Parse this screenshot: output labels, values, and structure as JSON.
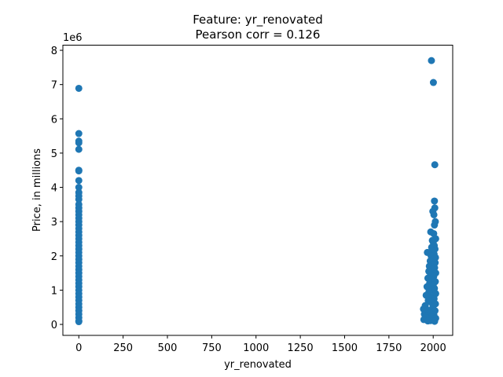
{
  "chart_data": {
    "type": "scatter",
    "title": "Feature: yr_renovated",
    "subtitle": "Pearson corr = 0.126",
    "xlabel": "yr_renovated",
    "ylabel": "Price, in millions",
    "y_offset_label": "1e6",
    "xlim": [
      -90,
      2110
    ],
    "ylim": [
      -320000,
      8150000
    ],
    "x_ticks": [
      0,
      250,
      500,
      750,
      1000,
      1250,
      1500,
      1750,
      2000
    ],
    "x_tick_labels": [
      "0",
      "250",
      "500",
      "750",
      "1000",
      "1250",
      "1500",
      "1750",
      "2000"
    ],
    "y_ticks": [
      0,
      1000000,
      2000000,
      3000000,
      4000000,
      5000000,
      6000000,
      7000000,
      8000000
    ],
    "y_tick_labels": [
      "0",
      "1",
      "2",
      "3",
      "4",
      "5",
      "6",
      "7",
      "8"
    ],
    "grid": false,
    "marker_color": "#1f77b4",
    "points": [
      [
        0,
        6890000
      ],
      [
        0,
        5570000
      ],
      [
        0,
        5350000
      ],
      [
        0,
        5300000
      ],
      [
        0,
        5110000
      ],
      [
        0,
        4500000
      ],
      [
        0,
        4480000
      ],
      [
        0,
        4200000
      ],
      [
        0,
        4000000
      ],
      [
        0,
        3850000
      ],
      [
        0,
        3750000
      ],
      [
        0,
        3650000
      ],
      [
        0,
        3500000
      ],
      [
        0,
        3400000
      ],
      [
        0,
        3300000
      ],
      [
        0,
        3200000
      ],
      [
        0,
        3100000
      ],
      [
        0,
        3000000
      ],
      [
        0,
        2900000
      ],
      [
        0,
        2800000
      ],
      [
        0,
        2700000
      ],
      [
        0,
        2600000
      ],
      [
        0,
        2500000
      ],
      [
        0,
        2400000
      ],
      [
        0,
        2300000
      ],
      [
        0,
        2200000
      ],
      [
        0,
        2100000
      ],
      [
        0,
        2000000
      ],
      [
        0,
        1900000
      ],
      [
        0,
        1800000
      ],
      [
        0,
        1700000
      ],
      [
        0,
        1600000
      ],
      [
        0,
        1500000
      ],
      [
        0,
        1400000
      ],
      [
        0,
        1300000
      ],
      [
        0,
        1200000
      ],
      [
        0,
        1100000
      ],
      [
        0,
        1000000
      ],
      [
        0,
        900000
      ],
      [
        0,
        800000
      ],
      [
        0,
        700000
      ],
      [
        0,
        600000
      ],
      [
        0,
        500000
      ],
      [
        0,
        400000
      ],
      [
        0,
        300000
      ],
      [
        0,
        200000
      ],
      [
        0,
        100000
      ],
      [
        0,
        80000
      ],
      [
        1990,
        7700000
      ],
      [
        2001,
        7060000
      ],
      [
        2009,
        4660000
      ],
      [
        2007,
        3600000
      ],
      [
        2009,
        3400000
      ],
      [
        1998,
        3300000
      ],
      [
        2004,
        3200000
      ],
      [
        2012,
        3000000
      ],
      [
        2007,
        2900000
      ],
      [
        1986,
        2700000
      ],
      [
        2003,
        2650000
      ],
      [
        2014,
        2500000
      ],
      [
        1995,
        2450000
      ],
      [
        2000,
        2400000
      ],
      [
        2006,
        2300000
      ],
      [
        1991,
        2250000
      ],
      [
        2010,
        2200000
      ],
      [
        1993,
        2150000
      ],
      [
        1967,
        2100000
      ],
      [
        2005,
        2050000
      ],
      [
        1988,
        2000000
      ],
      [
        2013,
        1950000
      ],
      [
        1999,
        1900000
      ],
      [
        1983,
        1850000
      ],
      [
        2011,
        1800000
      ],
      [
        2002,
        1750000
      ],
      [
        1978,
        1700000
      ],
      [
        2008,
        1650000
      ],
      [
        1996,
        1600000
      ],
      [
        1975,
        1550000
      ],
      [
        2014,
        1500000
      ],
      [
        1985,
        1450000
      ],
      [
        2003,
        1400000
      ],
      [
        1970,
        1350000
      ],
      [
        1992,
        1300000
      ],
      [
        2012,
        1250000
      ],
      [
        1980,
        1200000
      ],
      [
        2000,
        1150000
      ],
      [
        1965,
        1100000
      ],
      [
        2007,
        1050000
      ],
      [
        1989,
        1000000
      ],
      [
        1976,
        950000
      ],
      [
        2014,
        900000
      ],
      [
        1960,
        850000
      ],
      [
        1994,
        800000
      ],
      [
        2005,
        750000
      ],
      [
        1972,
        700000
      ],
      [
        1987,
        650000
      ],
      [
        2013,
        600000
      ],
      [
        1955,
        550000
      ],
      [
        1998,
        500000
      ],
      [
        1945,
        450000
      ],
      [
        1968,
        420000
      ],
      [
        2010,
        400000
      ],
      [
        1982,
        350000
      ],
      [
        1950,
        300000
      ],
      [
        2004,
        280000
      ],
      [
        1962,
        250000
      ],
      [
        1990,
        220000
      ],
      [
        1957,
        200000
      ],
      [
        2014,
        180000
      ],
      [
        1975,
        160000
      ],
      [
        1947,
        140000
      ],
      [
        2001,
        120000
      ],
      [
        1985,
        110000
      ],
      [
        1970,
        100000
      ],
      [
        2008,
        90000
      ]
    ]
  }
}
